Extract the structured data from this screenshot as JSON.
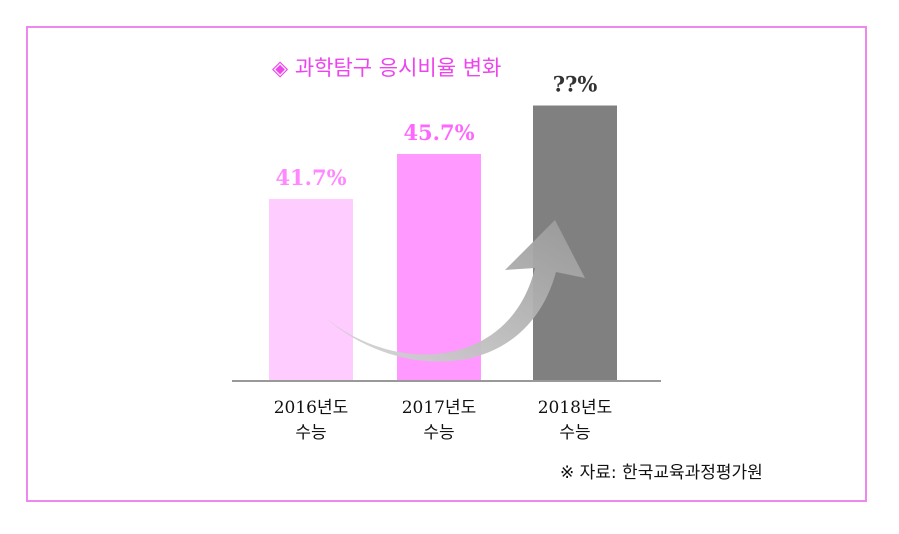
{
  "chart_data": {
    "type": "bar",
    "title": "◈ 과학탐구 응시비율 변화",
    "categories": [
      {
        "line1": "2016년도",
        "line2": "수능"
      },
      {
        "line1": "2017년도",
        "line2": "수능"
      },
      {
        "line1": "2018년도",
        "line2": "수능"
      }
    ],
    "values": [
      41.7,
      45.7,
      null
    ],
    "value_labels": [
      "41.7%",
      "45.7%",
      "??%"
    ],
    "bar_colors": [
      "#ffccff",
      "#ff99ff",
      "#808080"
    ],
    "label_colors": [
      "#ff88ff",
      "#ff66ff",
      "#333333"
    ],
    "placeholder_value": 50,
    "ylim": [
      0,
      50
    ],
    "grid": false,
    "source": "※ 자료: 한국교육과정평가원"
  }
}
